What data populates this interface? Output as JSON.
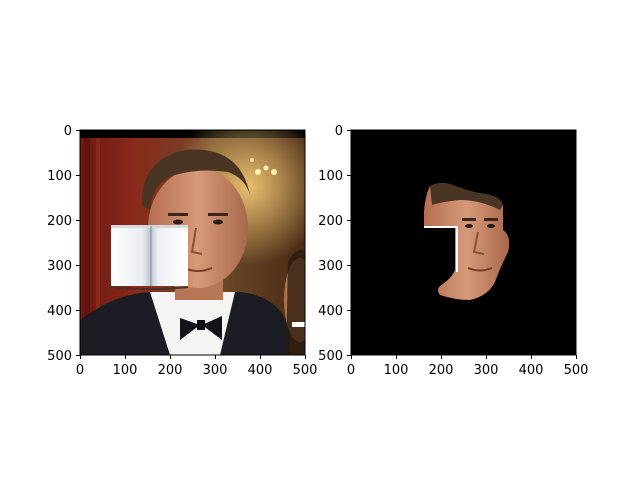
{
  "panels": [
    {
      "id": "left",
      "content": "photo of man in tuxedo with bow tie, face partially occluded by an open white book, woman partially visible at right edge",
      "x_ticks": [
        "0",
        "100",
        "200",
        "300",
        "400",
        "500"
      ],
      "y_ticks": [
        "0",
        "100",
        "200",
        "300",
        "400",
        "500"
      ]
    },
    {
      "id": "right",
      "content": "segmented face region on black background, left cheek area cut out where the book occluded it",
      "x_ticks": [
        "0",
        "100",
        "200",
        "300",
        "400",
        "500"
      ],
      "y_ticks": [
        "0",
        "100",
        "200",
        "300",
        "400",
        "500"
      ]
    }
  ],
  "colors": {
    "background": "#ffffff",
    "mask_background": "#000000",
    "skin": "#c98a6a",
    "hair": "#4a3524",
    "suit": "#1b1c24",
    "curtain": "#7a1a14"
  }
}
